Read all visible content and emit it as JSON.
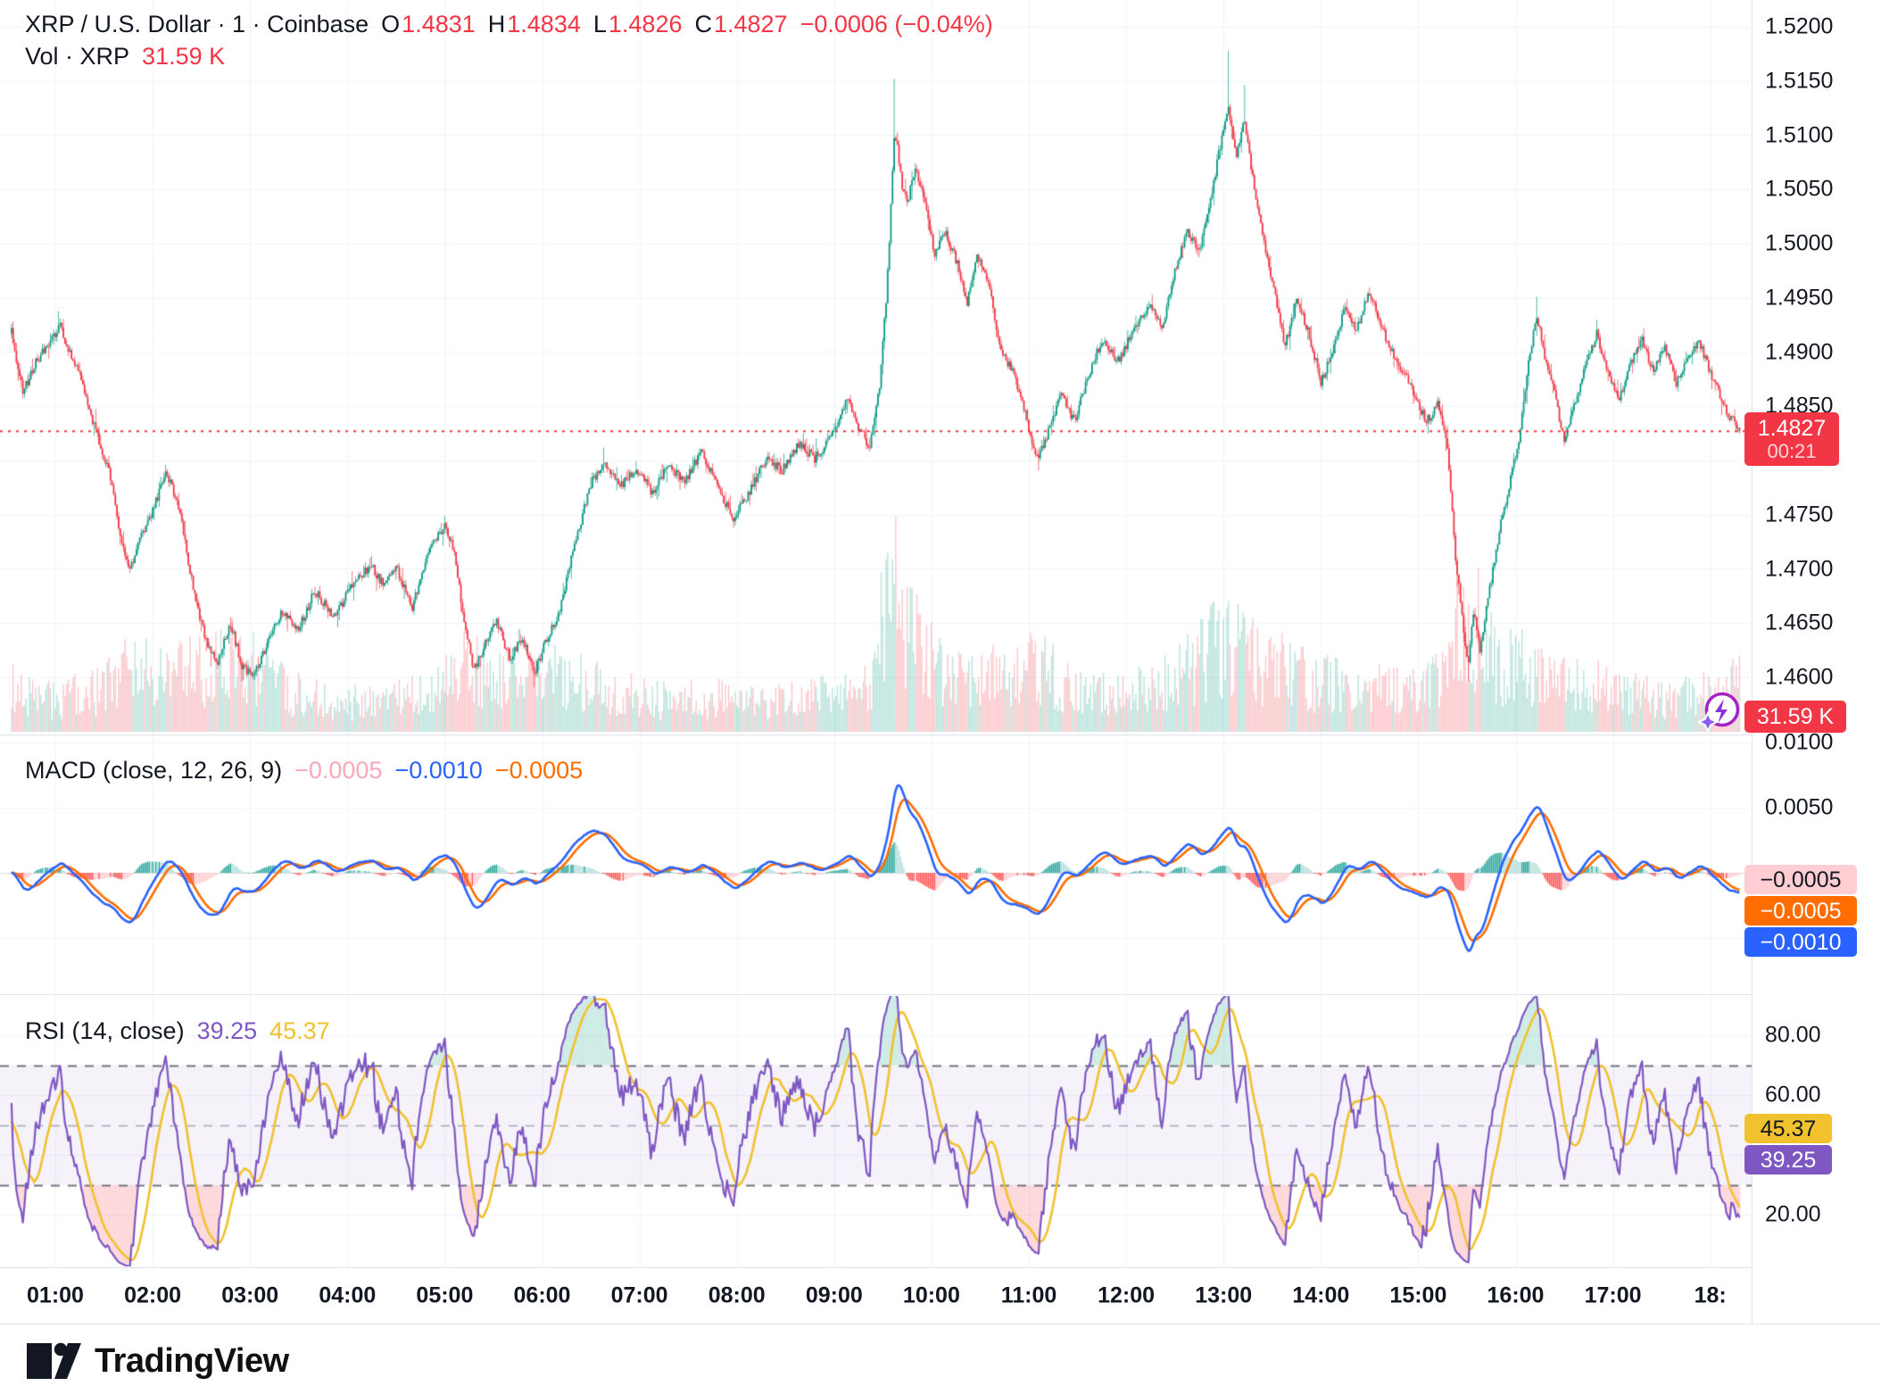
{
  "header": {
    "title": "XRP / U.S. Dollar · 1 · Coinbase",
    "ohlc": {
      "o_label": "O",
      "o": "1.4831",
      "h_label": "H",
      "h": "1.4834",
      "l_label": "L",
      "l": "1.4826",
      "c_label": "C",
      "c": "1.4827",
      "change": "−0.0006 (−0.04%)"
    },
    "volume_label": "Vol · XRP",
    "volume_value": "31.59 K"
  },
  "price_scale": {
    "labels": [
      "1.5200",
      "1.5150",
      "1.5100",
      "1.5050",
      "1.5000",
      "1.4950",
      "1.4900",
      "1.4850",
      "1.4750",
      "1.4700",
      "1.4650",
      "1.4600"
    ],
    "current_badge": {
      "price": "1.4827",
      "countdown": "00:21"
    },
    "volume_badge": "31.59 K"
  },
  "macd": {
    "title": "MACD (close, 12, 26, 9)",
    "values": {
      "histogram": "−0.0005",
      "macd": "−0.0010",
      "signal": "−0.0005"
    },
    "axis_labels": [
      "0.0100",
      "0.0050"
    ],
    "badges": [
      {
        "text": "−0.0005",
        "bg": "#FFCDD2",
        "fg": "#131722"
      },
      {
        "text": "−0.0005",
        "bg": "#FF6D00",
        "fg": "#FFFFFF"
      },
      {
        "text": "−0.0010",
        "bg": "#2962FF",
        "fg": "#FFFFFF"
      }
    ]
  },
  "rsi": {
    "title": "RSI (14, close)",
    "values": {
      "rsi": "39.25",
      "ma": "45.37"
    },
    "axis_labels": [
      "80.00",
      "60.00",
      "20.00"
    ],
    "badges": [
      {
        "text": "45.37",
        "bg": "#F2C12E",
        "fg": "#131722"
      },
      {
        "text": "39.25",
        "bg": "#7E57C2",
        "fg": "#FFFFFF"
      }
    ]
  },
  "time_axis": {
    "labels": [
      "01:00",
      "02:00",
      "03:00",
      "04:00",
      "05:00",
      "06:00",
      "07:00",
      "08:00",
      "09:00",
      "10:00",
      "11:00",
      "12:00",
      "13:00",
      "14:00",
      "15:00",
      "16:00",
      "17:00",
      "18:"
    ]
  },
  "logo": {
    "text": "TradingView"
  },
  "colors": {
    "up": "#089981",
    "down": "#F23645",
    "vol_up": "rgba(8,153,129,0.28)",
    "vol_down": "rgba(242,54,69,0.28)",
    "macd_line": "#2962FF",
    "signal_line": "#FF6D00",
    "hist_up_grow": "#26A69A",
    "hist_up_fall": "#B2DFDB",
    "hist_dn_fall": "#FF5252",
    "hist_dn_grow": "#FFCDD2",
    "rsi_line": "#7E57C2",
    "rsi_ma_line": "#F2C12E",
    "rsi_band_fill": "rgba(126,87,194,0.08)",
    "overbought_fill": "rgba(8,153,129,0.18)",
    "oversold_fill": "rgba(242,54,69,0.18)",
    "grid": "#F0F3FA",
    "price_line": "#F23645",
    "text": "#131722"
  },
  "chart_data": {
    "type": "candlestick",
    "symbol": "XRP/USD",
    "exchange": "Coinbase",
    "interval_minutes": 1,
    "time_start": "00:33",
    "time_end": "18:18",
    "price_axis_range": [
      1.454,
      1.5225
    ],
    "session_high": 1.5178,
    "session_low": 1.4591,
    "current_price": 1.4827,
    "price_anchors": [
      [
        33,
        1.4918
      ],
      [
        40,
        1.4862
      ],
      [
        48,
        1.489
      ],
      [
        55,
        1.4908
      ],
      [
        63,
        1.4923
      ],
      [
        75,
        1.4878
      ],
      [
        85,
        1.4827
      ],
      [
        95,
        1.478
      ],
      [
        101,
        1.4722
      ],
      [
        106,
        1.47
      ],
      [
        112,
        1.4728
      ],
      [
        120,
        1.4752
      ],
      [
        128,
        1.4791
      ],
      [
        136,
        1.4758
      ],
      [
        145,
        1.4682
      ],
      [
        152,
        1.4638
      ],
      [
        160,
        1.4613
      ],
      [
        168,
        1.465
      ],
      [
        175,
        1.461
      ],
      [
        182,
        1.4601
      ],
      [
        190,
        1.4628
      ],
      [
        200,
        1.4662
      ],
      [
        210,
        1.4645
      ],
      [
        220,
        1.468
      ],
      [
        232,
        1.4655
      ],
      [
        245,
        1.4692
      ],
      [
        255,
        1.4702
      ],
      [
        262,
        1.4686
      ],
      [
        270,
        1.4701
      ],
      [
        280,
        1.4665
      ],
      [
        290,
        1.4716
      ],
      [
        300,
        1.4741
      ],
      [
        306,
        1.4718
      ],
      [
        312,
        1.465
      ],
      [
        318,
        1.4606
      ],
      [
        325,
        1.4632
      ],
      [
        332,
        1.4652
      ],
      [
        340,
        1.4618
      ],
      [
        348,
        1.4636
      ],
      [
        355,
        1.4603
      ],
      [
        362,
        1.4632
      ],
      [
        370,
        1.4658
      ],
      [
        380,
        1.4722
      ],
      [
        390,
        1.4778
      ],
      [
        398,
        1.4801
      ],
      [
        408,
        1.4776
      ],
      [
        418,
        1.4792
      ],
      [
        428,
        1.477
      ],
      [
        438,
        1.4796
      ],
      [
        448,
        1.4781
      ],
      [
        458,
        1.4808
      ],
      [
        468,
        1.4776
      ],
      [
        478,
        1.4746
      ],
      [
        488,
        1.4772
      ],
      [
        498,
        1.4801
      ],
      [
        508,
        1.4791
      ],
      [
        518,
        1.4816
      ],
      [
        528,
        1.4802
      ],
      [
        538,
        1.4821
      ],
      [
        548,
        1.4856
      ],
      [
        555,
        1.4831
      ],
      [
        562,
        1.4812
      ],
      [
        568,
        1.487
      ],
      [
        572,
        1.4946
      ],
      [
        575,
        1.5034
      ],
      [
        577,
        1.5098
      ],
      [
        579,
        1.5088
      ],
      [
        582,
        1.5053
      ],
      [
        585,
        1.5036
      ],
      [
        590,
        1.5071
      ],
      [
        595,
        1.5042
      ],
      [
        602,
        1.4992
      ],
      [
        608,
        1.5012
      ],
      [
        615,
        1.4986
      ],
      [
        622,
        1.4946
      ],
      [
        628,
        1.4991
      ],
      [
        635,
        1.4966
      ],
      [
        642,
        1.4906
      ],
      [
        650,
        1.4882
      ],
      [
        658,
        1.4842
      ],
      [
        665,
        1.4802
      ],
      [
        672,
        1.4826
      ],
      [
        680,
        1.4861
      ],
      [
        688,
        1.4836
      ],
      [
        695,
        1.4871
      ],
      [
        705,
        1.4911
      ],
      [
        715,
        1.4892
      ],
      [
        725,
        1.4921
      ],
      [
        735,
        1.4946
      ],
      [
        742,
        1.4921
      ],
      [
        750,
        1.4976
      ],
      [
        758,
        1.5011
      ],
      [
        765,
        1.4992
      ],
      [
        772,
        1.5041
      ],
      [
        778,
        1.5091
      ],
      [
        783,
        1.5128
      ],
      [
        788,
        1.5081
      ],
      [
        793,
        1.5113
      ],
      [
        798,
        1.5061
      ],
      [
        805,
        1.5001
      ],
      [
        812,
        1.4951
      ],
      [
        818,
        1.4906
      ],
      [
        825,
        1.4948
      ],
      [
        832,
        1.4921
      ],
      [
        840,
        1.4872
      ],
      [
        848,
        1.4906
      ],
      [
        855,
        1.4941
      ],
      [
        862,
        1.4921
      ],
      [
        870,
        1.4956
      ],
      [
        878,
        1.4921
      ],
      [
        885,
        1.4896
      ],
      [
        895,
        1.4871
      ],
      [
        905,
        1.4836
      ],
      [
        912,
        1.4851
      ],
      [
        918,
        1.4811
      ],
      [
        923,
        1.4712
      ],
      [
        928,
        1.4641
      ],
      [
        931,
        1.4611
      ],
      [
        934,
        1.4661
      ],
      [
        938,
        1.4626
      ],
      [
        944,
        1.4681
      ],
      [
        950,
        1.4736
      ],
      [
        956,
        1.4776
      ],
      [
        962,
        1.4821
      ],
      [
        968,
        1.4891
      ],
      [
        973,
        1.4934
      ],
      [
        978,
        1.4896
      ],
      [
        984,
        1.4861
      ],
      [
        990,
        1.4816
      ],
      [
        996,
        1.4851
      ],
      [
        1003,
        1.4886
      ],
      [
        1010,
        1.4918
      ],
      [
        1017,
        1.4881
      ],
      [
        1024,
        1.4856
      ],
      [
        1031,
        1.4891
      ],
      [
        1038,
        1.4911
      ],
      [
        1045,
        1.4881
      ],
      [
        1052,
        1.4906
      ],
      [
        1059,
        1.4871
      ],
      [
        1066,
        1.4896
      ],
      [
        1073,
        1.4911
      ],
      [
        1080,
        1.4881
      ],
      [
        1087,
        1.4856
      ],
      [
        1092,
        1.4841
      ],
      [
        1098,
        1.4827
      ]
    ],
    "wick_events": [
      [
        63,
        "h",
        1.4931
      ],
      [
        128,
        "h",
        1.4796
      ],
      [
        175,
        "l",
        1.4596
      ],
      [
        300,
        "h",
        1.4749
      ],
      [
        355,
        "l",
        1.4591
      ],
      [
        398,
        "h",
        1.4812
      ],
      [
        577,
        "h",
        1.5152
      ],
      [
        783,
        "h",
        1.5178
      ],
      [
        793,
        "h",
        1.5146
      ],
      [
        931,
        "l",
        1.4596
      ],
      [
        973,
        "h",
        1.4951
      ],
      [
        1010,
        "h",
        1.4928
      ]
    ],
    "volume_anchors": [
      [
        33,
        0.3
      ],
      [
        60,
        0.22
      ],
      [
        90,
        0.3
      ],
      [
        105,
        0.45
      ],
      [
        128,
        0.38
      ],
      [
        152,
        0.45
      ],
      [
        175,
        0.52
      ],
      [
        200,
        0.3
      ],
      [
        232,
        0.22
      ],
      [
        262,
        0.2
      ],
      [
        290,
        0.28
      ],
      [
        312,
        0.5
      ],
      [
        332,
        0.38
      ],
      [
        355,
        0.42
      ],
      [
        380,
        0.35
      ],
      [
        398,
        0.3
      ],
      [
        428,
        0.22
      ],
      [
        458,
        0.25
      ],
      [
        478,
        0.22
      ],
      [
        508,
        0.22
      ],
      [
        538,
        0.28
      ],
      [
        562,
        0.3
      ],
      [
        570,
        0.75
      ],
      [
        577,
        1.0
      ],
      [
        585,
        0.7
      ],
      [
        595,
        0.55
      ],
      [
        608,
        0.42
      ],
      [
        622,
        0.35
      ],
      [
        642,
        0.4
      ],
      [
        665,
        0.45
      ],
      [
        688,
        0.3
      ],
      [
        715,
        0.28
      ],
      [
        742,
        0.35
      ],
      [
        758,
        0.45
      ],
      [
        772,
        0.55
      ],
      [
        783,
        0.65
      ],
      [
        798,
        0.5
      ],
      [
        818,
        0.45
      ],
      [
        840,
        0.35
      ],
      [
        870,
        0.3
      ],
      [
        905,
        0.28
      ],
      [
        918,
        0.55
      ],
      [
        928,
        0.9
      ],
      [
        938,
        0.7
      ],
      [
        950,
        0.5
      ],
      [
        962,
        0.45
      ],
      [
        973,
        0.5
      ],
      [
        990,
        0.35
      ],
      [
        1010,
        0.32
      ],
      [
        1031,
        0.28
      ],
      [
        1052,
        0.25
      ],
      [
        1073,
        0.28
      ],
      [
        1092,
        0.3
      ],
      [
        1098,
        0.35
      ]
    ],
    "indicators": {
      "macd": {
        "params": [
          12,
          26,
          9
        ],
        "source": "close",
        "last_histogram": -0.0005,
        "last_macd": -0.001,
        "last_signal": -0.0005
      },
      "rsi": {
        "params": 14,
        "source": "close",
        "last_rsi": 39.25,
        "last_ma": 45.37,
        "bands": [
          70,
          50,
          30
        ],
        "band_range_labels": [
          80,
          60,
          20
        ]
      }
    }
  }
}
